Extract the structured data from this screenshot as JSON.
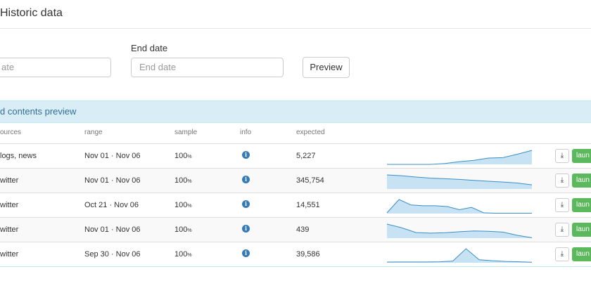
{
  "header": {
    "title": "Historic data"
  },
  "form": {
    "start_placeholder": "ate",
    "end_label": "End date",
    "end_placeholder": "End date",
    "preview_button": "Preview"
  },
  "panel": {
    "title": "d contents preview"
  },
  "table": {
    "columns": [
      "ources",
      "range",
      "sample",
      "info",
      "expected"
    ],
    "rows": [
      {
        "sources": "logs, news",
        "range": "Nov 01 · Nov 06",
        "sample": "100",
        "sample_unit": "%",
        "expected": "5,227",
        "sparkline": [
          0,
          0,
          0,
          0,
          4,
          12,
          18,
          28,
          30,
          45,
          62
        ],
        "download": "",
        "launch": "laun"
      },
      {
        "sources": "witter",
        "range": "Nov 01 · Nov 06",
        "sample": "100",
        "sample_unit": "%",
        "expected": "345,754",
        "sparkline": [
          85,
          80,
          72,
          66,
          62,
          58,
          52,
          47,
          42,
          36,
          25
        ],
        "download": "",
        "launch": "laun"
      },
      {
        "sources": "witter",
        "range": "Oct 21 · Nov 06",
        "sample": "100",
        "sample_unit": "%",
        "expected": "14,551",
        "sparkline": [
          5,
          90,
          55,
          50,
          50,
          45,
          25,
          40,
          5,
          2,
          2,
          2,
          2
        ],
        "download": "",
        "launch": "laun"
      },
      {
        "sources": "witter",
        "range": "Nov 01 · Nov 06",
        "sample": "100",
        "sample_unit": "%",
        "expected": "439",
        "sparkline": [
          70,
          52,
          28,
          25,
          27,
          32,
          36,
          34,
          30,
          14,
          2
        ],
        "download": "",
        "launch": "laun"
      },
      {
        "sources": "witter",
        "range": "Sep 30 · Nov 06",
        "sample": "100",
        "sample_unit": "%",
        "expected": "39,586",
        "sparkline": [
          4,
          5,
          5,
          5,
          6,
          10,
          85,
          18,
          12,
          8,
          6,
          3
        ],
        "download": "",
        "launch": "laun"
      }
    ]
  }
}
